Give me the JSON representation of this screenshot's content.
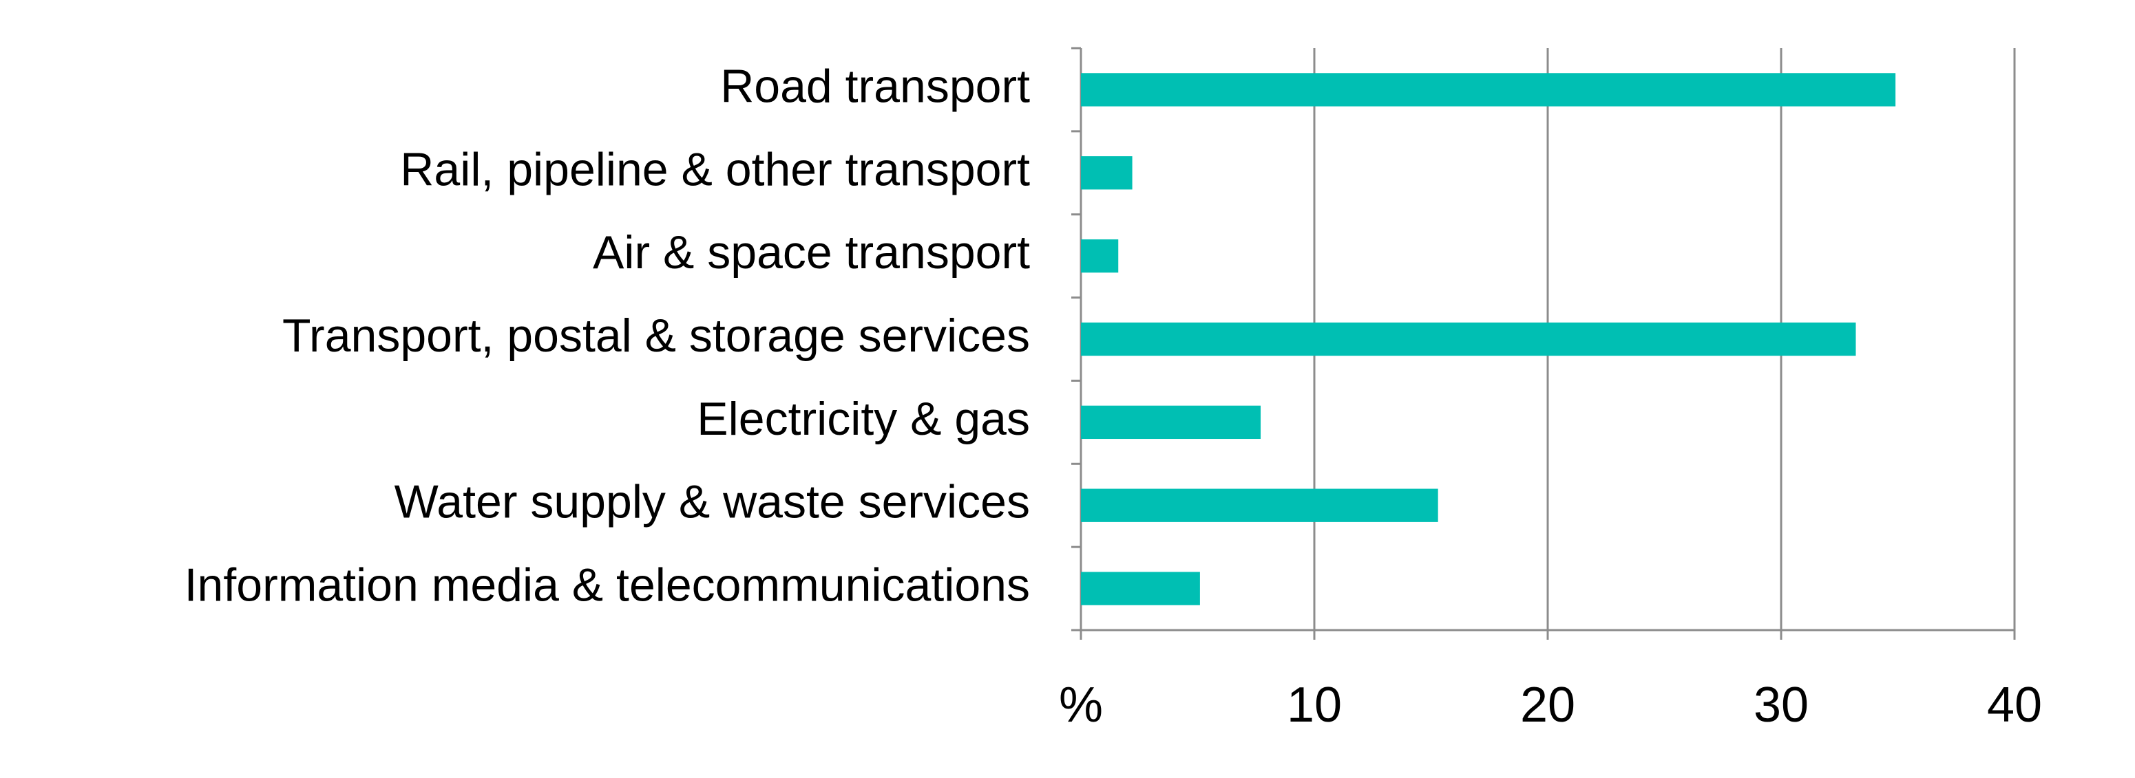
{
  "chart_data": {
    "type": "bar",
    "orientation": "horizontal",
    "categories": [
      "Road transport",
      "Rail, pipeline & other transport",
      "Air & space transport",
      "Transport, postal & storage services",
      "Electricity & gas",
      "Water supply & waste services",
      "Information media & telecommunications"
    ],
    "values": [
      34.9,
      2.2,
      1.6,
      33.2,
      7.7,
      15.3,
      5.1
    ],
    "color": "#00bfb3",
    "xlim": [
      0,
      40
    ],
    "xticks": [
      {
        "value": 0,
        "label": "%"
      },
      10,
      20,
      30,
      40
    ],
    "grid": true
  }
}
